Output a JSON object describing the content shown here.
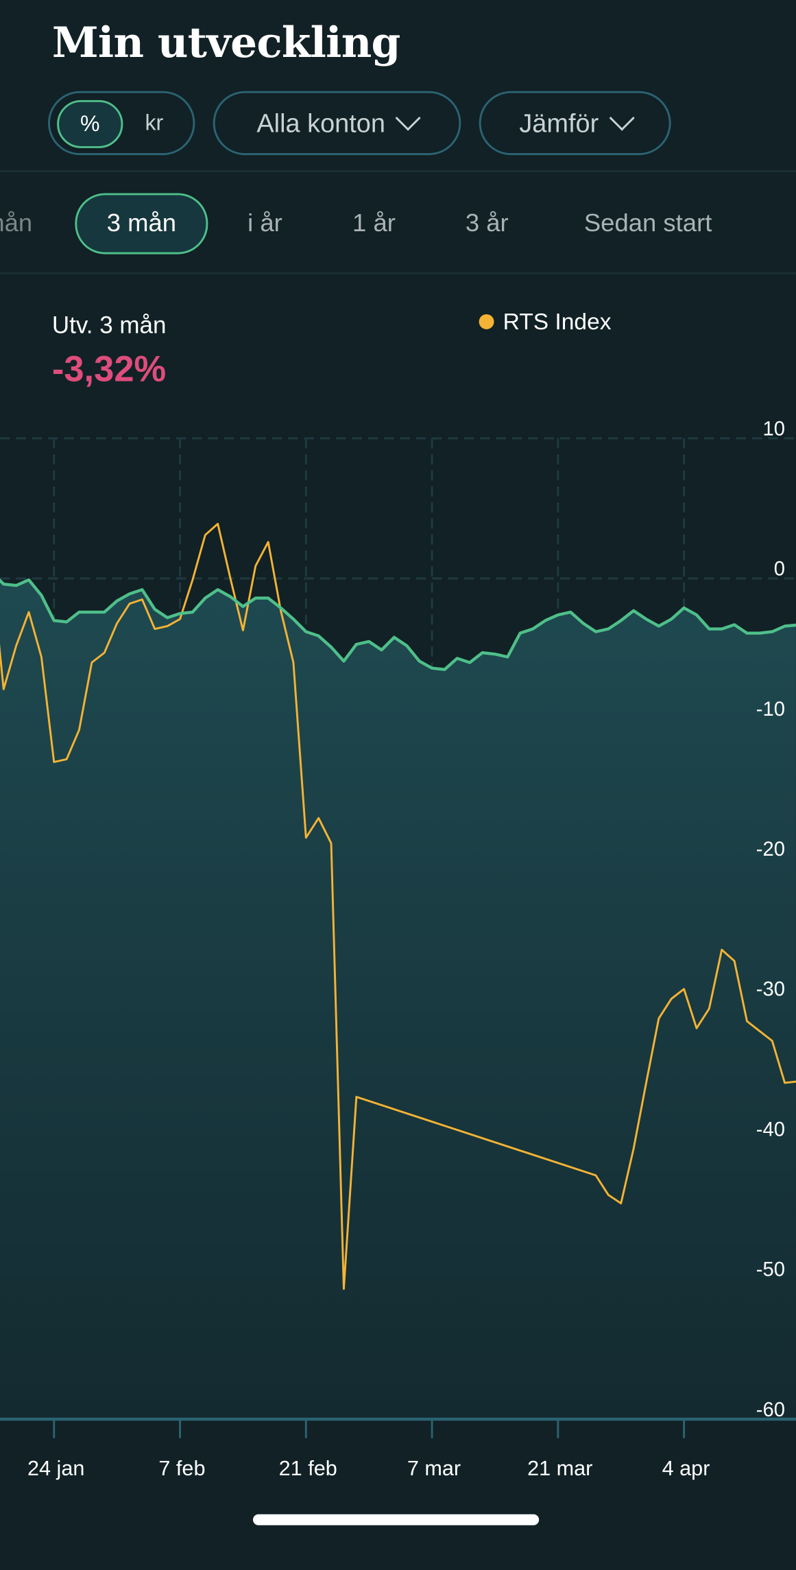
{
  "header": {
    "title": "Min utveckling"
  },
  "filters": {
    "unit_toggle": {
      "options": [
        "%",
        "kr"
      ],
      "selected": "%"
    },
    "accounts": {
      "label": "Alla konton",
      "icon": "chevron-down-icon"
    },
    "compare": {
      "label": "Jämför",
      "icon": "chevron-down-icon"
    }
  },
  "period_tabs": {
    "items": [
      "mån",
      "3 mån",
      "i år",
      "1 år",
      "3 år",
      "Sedan start"
    ],
    "selected": "3 mån"
  },
  "summary": {
    "label": "Utv.  3 mån",
    "value": "-3,32%",
    "value_color": "#de4d7c"
  },
  "colors": {
    "background": "#112125",
    "accent": "#4fbf8a",
    "comparison": "#f5b335",
    "fill": "#1f4a51"
  },
  "chart_data": {
    "type": "area",
    "legend": [
      {
        "name": "RTS Index",
        "color": "#f5b335",
        "placement": "top-right"
      }
    ],
    "y_ticks": [
      "10",
      "0",
      "-10",
      "-20",
      "-30",
      "-40",
      "-50",
      "-60"
    ],
    "ylim": [
      -60,
      10
    ],
    "x_ticks": [
      "24 jan",
      "7 feb",
      "21 feb",
      "7 mar",
      "21 mar",
      "4 apr"
    ],
    "grid": true,
    "x": [
      "17 jan",
      "18 jan",
      "19 jan",
      "20 jan",
      "21 jan",
      "24 jan",
      "25 jan",
      "26 jan",
      "27 jan",
      "28 jan",
      "31 jan",
      "1 feb",
      "2 feb",
      "3 feb",
      "4 feb",
      "7 feb",
      "8 feb",
      "9 feb",
      "10 feb",
      "11 feb",
      "14 feb",
      "15 feb",
      "16 feb",
      "17 feb",
      "18 feb",
      "21 feb",
      "22 feb",
      "23 feb",
      "24 feb",
      "25 feb",
      "28 feb",
      "1 mar",
      "2 mar",
      "3 mar",
      "4 mar",
      "7 mar",
      "8 mar",
      "9 mar",
      "10 mar",
      "11 mar",
      "14 mar",
      "15 mar",
      "16 mar",
      "17 mar",
      "18 mar",
      "21 mar",
      "22 mar",
      "23 mar",
      "24 mar",
      "25 mar",
      "28 mar",
      "29 mar",
      "30 mar",
      "31 mar",
      "1 apr",
      "4 apr",
      "5 apr",
      "6 apr",
      "7 apr",
      "8 apr",
      "11 apr",
      "12 apr",
      "13 apr",
      "14 apr",
      "15 apr"
    ],
    "series": [
      {
        "values": [
          0.5,
          -0.4,
          -0.5,
          -0.1,
          -1.2,
          -3.0,
          -3.1,
          -2.4,
          -2.4,
          -2.4,
          -1.6,
          -1.1,
          -0.8,
          -2.2,
          -2.8,
          -2.5,
          -2.4,
          -1.4,
          -0.8,
          -1.3,
          -2.0,
          -1.4,
          -1.4,
          -2.1,
          -2.9,
          -3.8,
          -4.1,
          -4.9,
          -5.9,
          -4.7,
          -4.5,
          -5.1,
          -4.2,
          -4.8,
          -5.9,
          -6.4,
          -6.5,
          -5.7,
          -6.0,
          -5.3,
          -5.4,
          -5.6,
          -3.9,
          -3.6,
          -3.0,
          -2.6,
          -2.4,
          -3.2,
          -3.8,
          -3.6,
          -3.0,
          -2.3,
          -2.9,
          -3.4,
          -2.9,
          -2.1,
          -2.6,
          -3.6,
          -3.6,
          -3.3,
          -3.9,
          -3.9,
          -3.8,
          -3.4,
          -3.32
        ],
        "color": "#4fbf8a"
      },
      {
        "name": "RTS Index",
        "values": [
          1.0,
          -7.9,
          -4.8,
          -2.4,
          -5.6,
          -13.1,
          -12.9,
          -10.8,
          -6.0,
          -5.3,
          -3.2,
          -1.8,
          -1.5,
          -3.6,
          -3.4,
          -2.9,
          -0.1,
          3.1,
          3.9,
          0.0,
          -3.7,
          0.9,
          2.6,
          -2.3,
          -6.0,
          -18.5,
          -17.1,
          -18.9,
          -50.7,
          -37.0,
          null,
          null,
          null,
          null,
          null,
          null,
          null,
          null,
          null,
          null,
          null,
          null,
          null,
          null,
          null,
          null,
          null,
          null,
          -42.6,
          -44.0,
          -44.6,
          -40.7,
          -36.0,
          -31.4,
          -30.0,
          -29.3,
          -32.1,
          -30.7,
          -26.5,
          -27.3,
          -31.6,
          -32.3,
          -33.0,
          -36.0,
          -35.9
        ],
        "color": "#f5b335"
      }
    ]
  }
}
